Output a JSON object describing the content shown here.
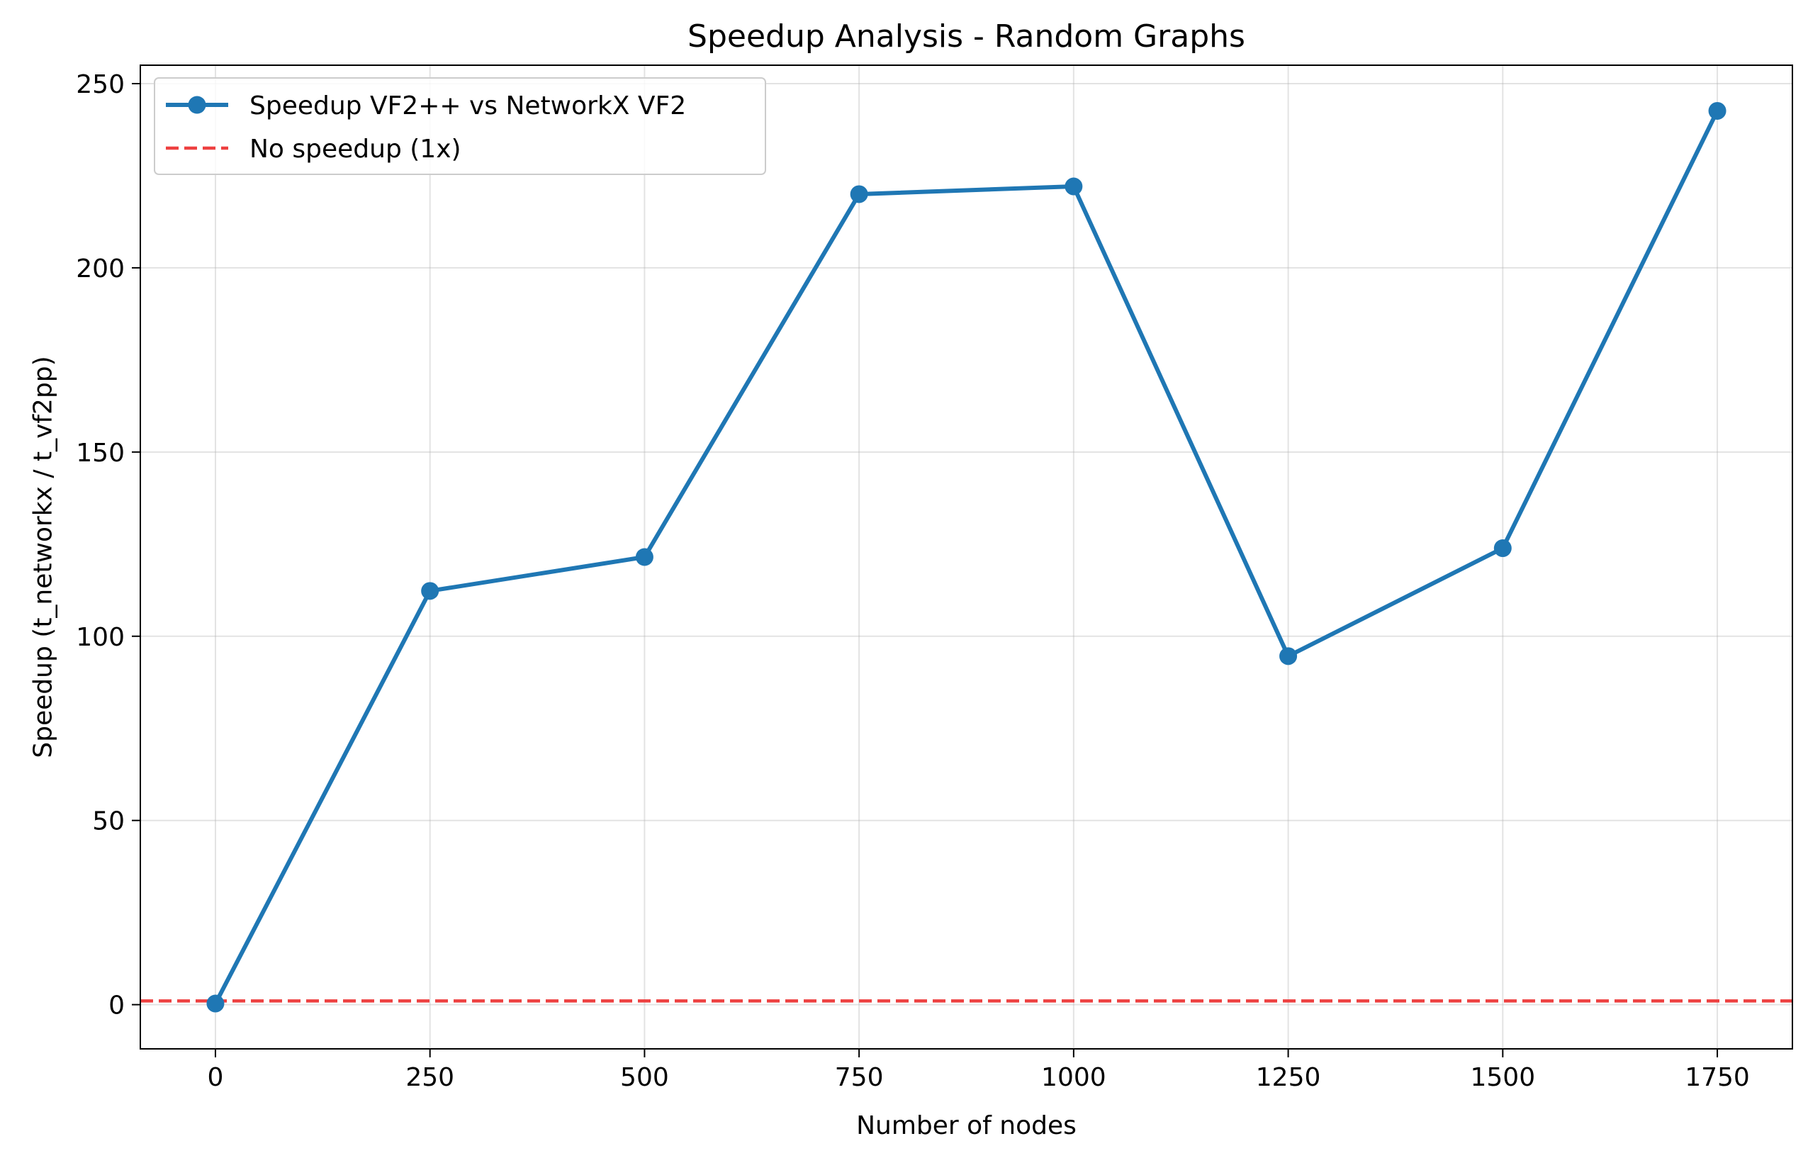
{
  "chart_data": {
    "type": "line",
    "title": "Speedup Analysis - Random Graphs",
    "xlabel": "Number of nodes",
    "ylabel": "Speedup (t_networkx / t_vf2pp)",
    "xlim": [
      -87.5,
      1837.5
    ],
    "ylim": [
      -12,
      255
    ],
    "xticks": [
      0,
      250,
      500,
      750,
      1000,
      1250,
      1500,
      1750
    ],
    "xtick_labels": [
      "0",
      "250",
      "500",
      "750",
      "1000",
      "1250",
      "1500",
      "1750"
    ],
    "yticks": [
      0,
      50,
      100,
      150,
      200,
      250
    ],
    "ytick_labels": [
      "0",
      "50",
      "100",
      "150",
      "200",
      "250"
    ],
    "grid": true,
    "legend_position": "top-left",
    "series": [
      {
        "name": "Speedup VF2++ vs NetworkX VF2",
        "color": "#1f77b4",
        "style": "solid-with-markers",
        "x": [
          0,
          250,
          500,
          750,
          1000,
          1250,
          1500,
          1750
        ],
        "y": [
          0.3,
          112.3,
          121.5,
          220.0,
          222.1,
          94.6,
          123.9,
          242.6
        ]
      }
    ],
    "reference_lines": [
      {
        "name": "No speedup (1x)",
        "color": "#ee4040",
        "style": "dashed",
        "y": 1
      }
    ]
  }
}
